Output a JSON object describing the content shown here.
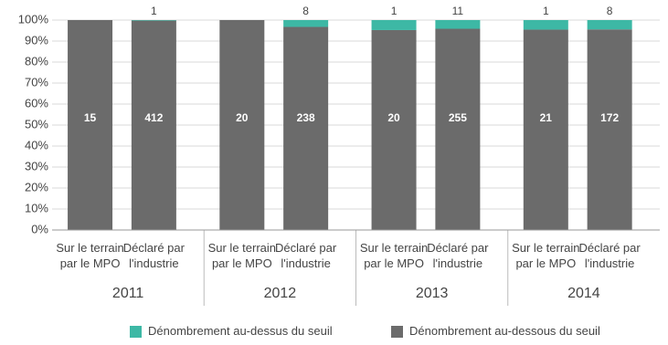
{
  "chart_data": {
    "type": "bar",
    "stacking": "percent",
    "categories": [
      "Sur le terrain par le MPO",
      "Déclaré par l'industrie",
      "Sur le terrain par le MPO",
      "Déclaré par l'industrie",
      "Sur le terrain par le MPO",
      "Déclaré par l'industrie",
      "Sur le terrain par le MPO",
      "Déclaré par l'industrie"
    ],
    "groups": [
      "2011",
      "2012",
      "2013",
      "2014"
    ],
    "series": [
      {
        "name": "Dénombrement au-dessus du seuil",
        "color": "#3db8a5",
        "values": [
          null,
          1,
          null,
          8,
          1,
          11,
          1,
          8
        ]
      },
      {
        "name": "Dénombrement au-dessous du seuil",
        "color": "#6b6b6b",
        "values": [
          15,
          412,
          20,
          238,
          20,
          255,
          21,
          172
        ]
      }
    ],
    "ylim": [
      0,
      100
    ],
    "yticks": [
      {
        "value": 0,
        "label": "0%"
      },
      {
        "value": 10,
        "label": "10%"
      },
      {
        "value": 20,
        "label": "20%"
      },
      {
        "value": 30,
        "label": "30%"
      },
      {
        "value": 40,
        "label": "40%"
      },
      {
        "value": 50,
        "label": "50%"
      },
      {
        "value": 60,
        "label": "60%"
      },
      {
        "value": 70,
        "label": "70%"
      },
      {
        "value": 80,
        "label": "80%"
      },
      {
        "value": 90,
        "label": "90%"
      },
      {
        "value": 100,
        "label": "100%"
      }
    ],
    "grid": true
  }
}
